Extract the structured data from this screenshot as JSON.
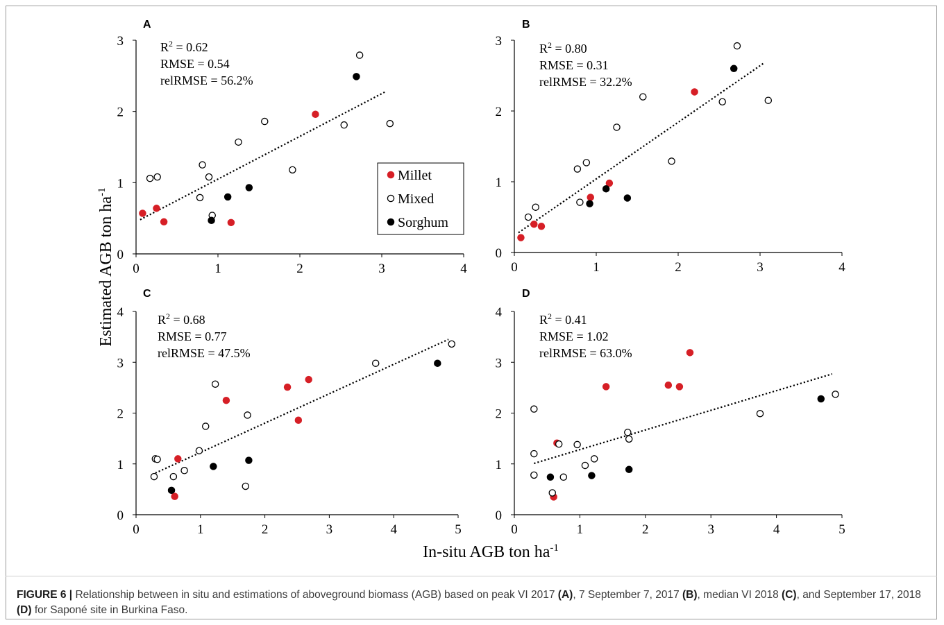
{
  "figure": {
    "y_axis_label": "Estimated AGB ton ha",
    "y_axis_label_sup": "-1",
    "x_axis_label": "In-situ AGB ton ha",
    "x_axis_label_sup": "-1",
    "legend": {
      "items": [
        {
          "label": "Millet",
          "style": "filled-red"
        },
        {
          "label": "Mixed",
          "style": "open"
        },
        {
          "label": "Sorghum",
          "style": "filled-black"
        }
      ]
    },
    "colors": {
      "millet": "#d61f26",
      "mixed": "#ffffff",
      "sorghum": "#000000",
      "axis": "#000000"
    }
  },
  "caption": {
    "label": "FIGURE 6 |",
    "text_1": " Relationship between in situ and estimations of aboveground biomass (AGB) based on peak VI 2017 ",
    "ref_a": "(A)",
    "text_2": ", 7 September 7, 2017 ",
    "ref_b": "(B)",
    "text_3": ", median VI 2018 ",
    "ref_c": "(C)",
    "text_4": ", and September 17, 2018 ",
    "ref_d": "(D)",
    "text_5": " for Saponé site in Burkina Faso."
  },
  "chart_data": [
    {
      "panel": "A",
      "type": "scatter",
      "stats": [
        "R2 = 0.62",
        "RMSE = 0.54",
        "relRMSE = 56.2%"
      ],
      "xlim": [
        0,
        4
      ],
      "ylim": [
        0,
        3
      ],
      "xticks": [
        0,
        1,
        2,
        3,
        4
      ],
      "yticks": [
        0,
        1,
        2,
        3
      ],
      "trendline": [
        [
          0.05,
          0.48
        ],
        [
          3.05,
          2.28
        ]
      ],
      "series": [
        {
          "name": "Millet",
          "points": [
            [
              0.08,
              0.57
            ],
            [
              0.25,
              0.64
            ],
            [
              0.34,
              0.45
            ],
            [
              1.16,
              0.44
            ],
            [
              2.19,
              1.96
            ]
          ]
        },
        {
          "name": "Mixed",
          "points": [
            [
              0.17,
              1.06
            ],
            [
              0.26,
              1.08
            ],
            [
              0.78,
              0.79
            ],
            [
              0.81,
              1.25
            ],
            [
              0.89,
              1.08
            ],
            [
              0.93,
              0.54
            ],
            [
              1.25,
              1.57
            ],
            [
              1.57,
              1.86
            ],
            [
              1.91,
              1.18
            ],
            [
              2.54,
              1.81
            ],
            [
              2.73,
              2.79
            ],
            [
              3.1,
              1.83
            ]
          ]
        },
        {
          "name": "Sorghum",
          "points": [
            [
              0.92,
              0.47
            ],
            [
              1.12,
              0.8
            ],
            [
              1.38,
              0.93
            ],
            [
              2.69,
              2.49
            ]
          ]
        }
      ]
    },
    {
      "panel": "B",
      "type": "scatter",
      "stats": [
        "R2 = 0.80",
        "RMSE = 0.31",
        "relRMSE = 32.2%"
      ],
      "xlim": [
        0,
        4
      ],
      "ylim": [
        0,
        3
      ],
      "xticks": [
        0,
        1,
        2,
        3,
        4
      ],
      "yticks": [
        0,
        1,
        2,
        3
      ],
      "trendline": [
        [
          0.05,
          0.28
        ],
        [
          3.05,
          2.68
        ]
      ],
      "series": [
        {
          "name": "Millet",
          "points": [
            [
              0.08,
              0.21
            ],
            [
              0.24,
              0.4
            ],
            [
              0.33,
              0.37
            ],
            [
              0.93,
              0.78
            ],
            [
              1.16,
              0.98
            ],
            [
              2.2,
              2.27
            ]
          ]
        },
        {
          "name": "Mixed",
          "points": [
            [
              0.17,
              0.5
            ],
            [
              0.26,
              0.64
            ],
            [
              0.77,
              1.18
            ],
            [
              0.8,
              0.71
            ],
            [
              0.88,
              1.27
            ],
            [
              1.25,
              1.77
            ],
            [
              1.57,
              2.2
            ],
            [
              1.92,
              1.29
            ],
            [
              2.54,
              2.13
            ],
            [
              2.72,
              2.92
            ],
            [
              3.1,
              2.15
            ]
          ]
        },
        {
          "name": "Sorghum",
          "points": [
            [
              0.92,
              0.69
            ],
            [
              1.12,
              0.9
            ],
            [
              1.38,
              0.77
            ],
            [
              2.68,
              2.6
            ]
          ]
        }
      ]
    },
    {
      "panel": "C",
      "type": "scatter",
      "stats": [
        "R2 = 0.68",
        "RMSE = 0.77",
        "relRMSE = 47.5%"
      ],
      "xlim": [
        0,
        5
      ],
      "ylim": [
        0,
        4
      ],
      "xticks": [
        0,
        1,
        2,
        3,
        4,
        5
      ],
      "yticks": [
        0,
        1,
        2,
        3,
        4
      ],
      "trendline": [
        [
          0.3,
          0.82
        ],
        [
          4.85,
          3.45
        ]
      ],
      "series": [
        {
          "name": "Millet",
          "points": [
            [
              0.6,
              0.36
            ],
            [
              0.65,
              1.1
            ],
            [
              1.4,
              2.25
            ],
            [
              2.35,
              2.51
            ],
            [
              2.52,
              1.86
            ],
            [
              2.68,
              2.66
            ]
          ]
        },
        {
          "name": "Mixed",
          "points": [
            [
              0.28,
              0.75
            ],
            [
              0.3,
              1.1
            ],
            [
              0.33,
              1.09
            ],
            [
              0.58,
              0.75
            ],
            [
              0.75,
              0.87
            ],
            [
              0.98,
              1.26
            ],
            [
              1.08,
              1.74
            ],
            [
              1.23,
              2.57
            ],
            [
              1.7,
              0.56
            ],
            [
              1.73,
              1.96
            ],
            [
              3.72,
              2.98
            ],
            [
              4.9,
              3.36
            ]
          ]
        },
        {
          "name": "Sorghum",
          "points": [
            [
              0.55,
              0.48
            ],
            [
              1.2,
              0.95
            ],
            [
              1.75,
              1.07
            ],
            [
              4.68,
              2.98
            ]
          ]
        }
      ]
    },
    {
      "panel": "D",
      "type": "scatter",
      "stats": [
        "R2 = 0.41",
        "RMSE = 1.02",
        "relRMSE = 63.0%"
      ],
      "xlim": [
        0,
        5
      ],
      "ylim": [
        0,
        4
      ],
      "xticks": [
        0,
        1,
        2,
        3,
        4,
        5
      ],
      "yticks": [
        0,
        1,
        2,
        3,
        4
      ],
      "trendline": [
        [
          0.3,
          1.01
        ],
        [
          4.85,
          2.77
        ]
      ],
      "series": [
        {
          "name": "Millet",
          "points": [
            [
              0.6,
              0.35
            ],
            [
              0.65,
              1.41
            ],
            [
              1.4,
              2.52
            ],
            [
              2.35,
              2.55
            ],
            [
              2.52,
              2.52
            ],
            [
              2.68,
              3.19
            ]
          ]
        },
        {
          "name": "Mixed",
          "points": [
            [
              0.3,
              2.08
            ],
            [
              0.3,
              1.2
            ],
            [
              0.3,
              0.78
            ],
            [
              0.58,
              0.43
            ],
            [
              0.68,
              1.39
            ],
            [
              0.75,
              0.74
            ],
            [
              0.96,
              1.38
            ],
            [
              1.08,
              0.97
            ],
            [
              1.22,
              1.1
            ],
            [
              1.73,
              1.62
            ],
            [
              1.75,
              1.49
            ],
            [
              3.75,
              1.99
            ],
            [
              4.9,
              2.37
            ]
          ]
        },
        {
          "name": "Sorghum",
          "points": [
            [
              0.55,
              0.74
            ],
            [
              1.18,
              0.77
            ],
            [
              1.75,
              0.89
            ],
            [
              4.68,
              2.28
            ]
          ]
        }
      ]
    }
  ]
}
